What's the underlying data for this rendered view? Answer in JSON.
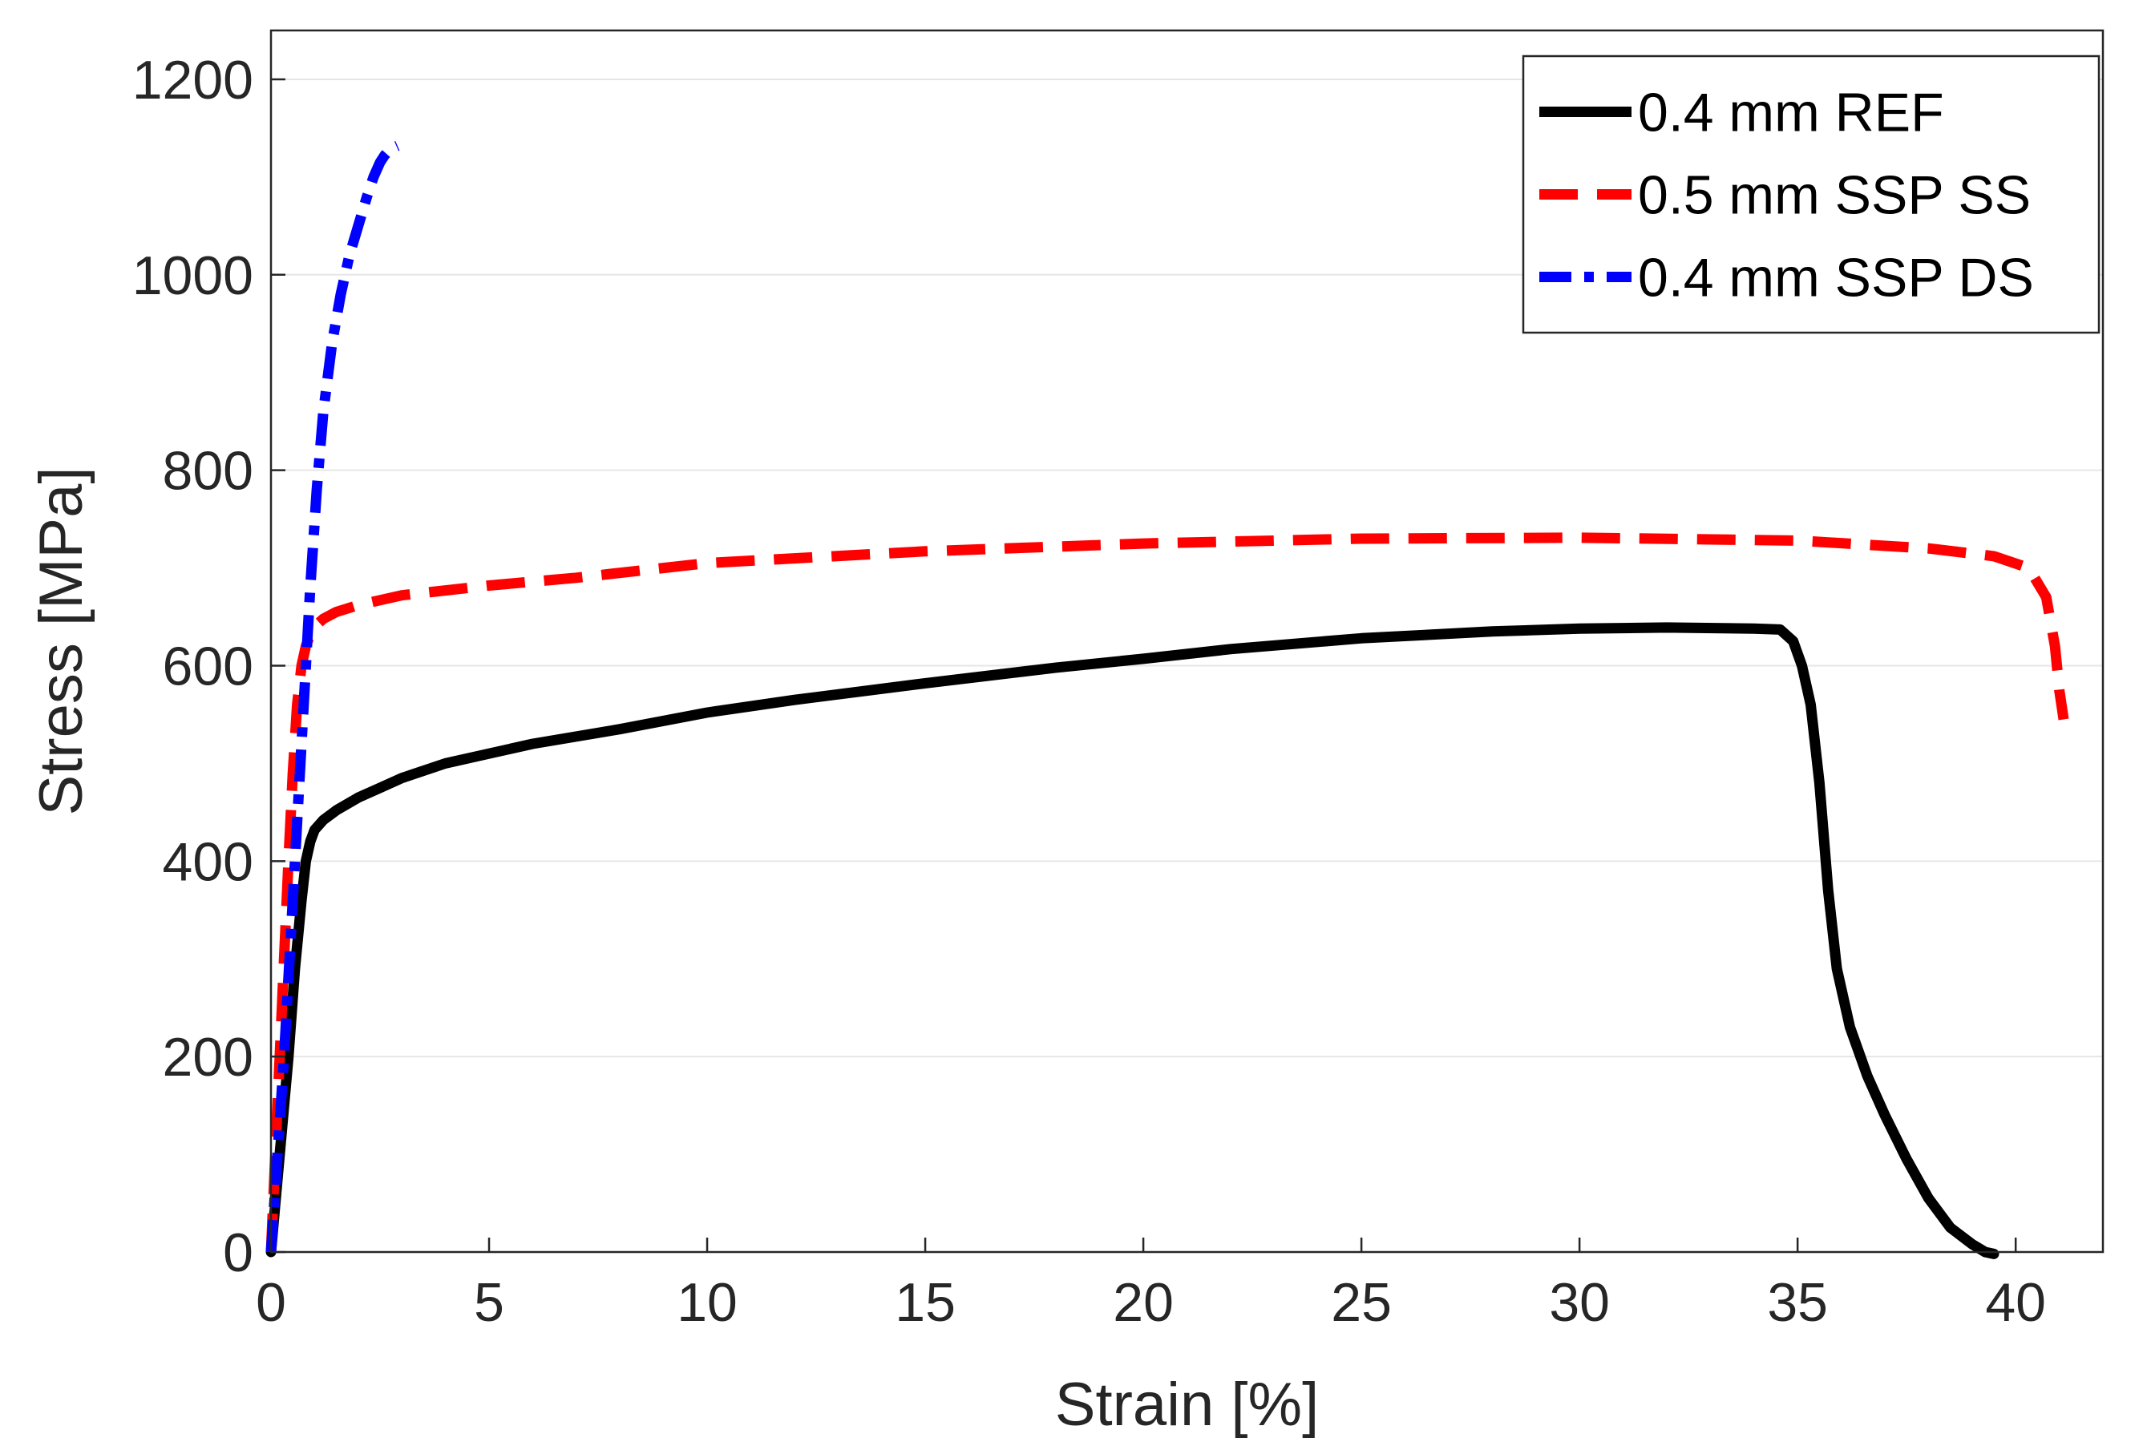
{
  "chart_data": {
    "type": "line",
    "title": "",
    "xlabel": "Strain [%]",
    "ylabel": "Stress [MPa]",
    "xlim": [
      0,
      42
    ],
    "ylim": [
      0,
      1250
    ],
    "xticks": [
      0,
      5,
      10,
      15,
      20,
      25,
      30,
      35,
      40
    ],
    "yticks": [
      0,
      200,
      400,
      600,
      800,
      1000,
      1200
    ],
    "grid": "horizontal",
    "legend_position": "top-right",
    "series": [
      {
        "name": "0.4 mm REF",
        "color": "#000000",
        "dash": "solid",
        "x": [
          0,
          0.2,
          0.4,
          0.55,
          0.7,
          0.8,
          0.9,
          1.0,
          1.2,
          1.5,
          2.0,
          2.5,
          3.0,
          4.0,
          5.0,
          6.0,
          8.0,
          10.0,
          12.0,
          15.0,
          18.0,
          20.0,
          22.0,
          25.0,
          28.0,
          30.0,
          32.0,
          34.0,
          34.6,
          34.9,
          35.1,
          35.3,
          35.5,
          35.7,
          35.9,
          36.2,
          36.6,
          37.0,
          37.5,
          38.0,
          38.5,
          39.0,
          39.3,
          39.5
        ],
        "y": [
          0,
          100,
          200,
          290,
          360,
          400,
          420,
          432,
          442,
          452,
          465,
          475,
          485,
          500,
          510,
          520,
          535,
          552,
          565,
          582,
          598,
          607,
          617,
          628,
          635,
          638,
          639,
          638,
          637,
          625,
          600,
          560,
          480,
          370,
          290,
          230,
          180,
          140,
          95,
          55,
          25,
          8,
          0,
          -2
        ]
      },
      {
        "name": "0.5 mm SSP SS",
        "color": "#ff0000",
        "dash": "dashed",
        "x": [
          0,
          0.1,
          0.2,
          0.3,
          0.4,
          0.5,
          0.6,
          0.7,
          0.8,
          0.9,
          1.0,
          1.2,
          1.5,
          2.0,
          3.0,
          5.0,
          7.0,
          10.0,
          15.0,
          20.0,
          25.0,
          30.0,
          35.0,
          38.0,
          39.5,
          40.3,
          40.7,
          40.9,
          41.0,
          41.1
        ],
        "y": [
          0,
          100,
          200,
          300,
          400,
          490,
          560,
          600,
          620,
          632,
          640,
          648,
          655,
          662,
          672,
          682,
          690,
          705,
          717,
          725,
          730,
          731,
          728,
          720,
          712,
          700,
          670,
          620,
          575,
          545
        ]
      },
      {
        "name": "0.4 mm SSP DS",
        "color": "#0000ff",
        "dash": "dash-dot",
        "x": [
          0,
          0.15,
          0.3,
          0.45,
          0.6,
          0.75,
          0.9,
          1.05,
          1.2,
          1.4,
          1.6,
          1.8,
          2.0,
          2.2,
          2.35,
          2.5,
          2.6,
          2.7,
          2.8,
          2.9
        ],
        "y": [
          0,
          100,
          200,
          320,
          440,
          560,
          680,
          780,
          860,
          930,
          980,
          1020,
          1050,
          1080,
          1100,
          1115,
          1122,
          1127,
          1130,
          1132
        ]
      }
    ]
  }
}
